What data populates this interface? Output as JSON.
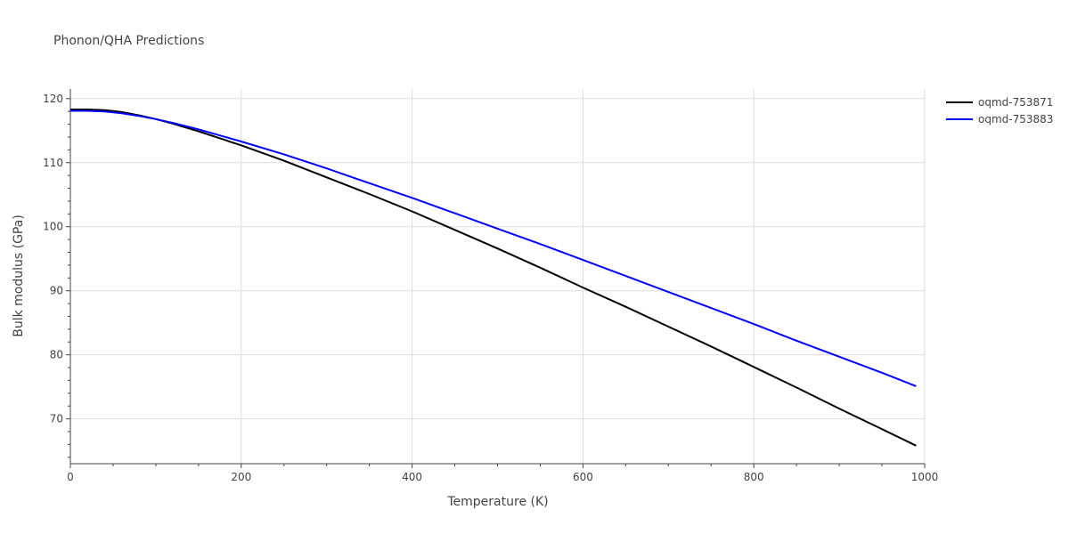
{
  "chart_data": {
    "type": "line",
    "title": "Phonon/QHA Predictions",
    "xlabel": "Temperature (K)",
    "ylabel": "Bulk modulus (GPa)",
    "xlim": [
      0,
      1000
    ],
    "ylim": [
      63,
      121.5
    ],
    "x_ticks": [
      0,
      200,
      400,
      600,
      800,
      1000
    ],
    "x_tick_labels": [
      "0",
      "200",
      "400",
      "600",
      "800",
      "1000"
    ],
    "y_ticks": [
      70,
      80,
      90,
      100,
      110,
      120
    ],
    "y_tick_labels": [
      "70",
      "80",
      "90",
      "100",
      "110",
      "120"
    ],
    "grid": true,
    "legend_position": "top-right",
    "series": [
      {
        "name": "oqmd-753871",
        "color": "#000000",
        "x": [
          0,
          20,
          40,
          60,
          80,
          100,
          120,
          150,
          200,
          250,
          300,
          350,
          400,
          450,
          500,
          550,
          600,
          650,
          700,
          750,
          800,
          850,
          900,
          950,
          990
        ],
        "y": [
          118.3,
          118.3,
          118.2,
          117.9,
          117.4,
          116.8,
          116.1,
          114.9,
          112.7,
          110.3,
          107.7,
          105.1,
          102.4,
          99.5,
          96.6,
          93.6,
          90.5,
          87.5,
          84.4,
          81.3,
          78.1,
          74.9,
          71.6,
          68.4,
          65.8
        ]
      },
      {
        "name": "oqmd-753883",
        "color": "#0000ff",
        "x": [
          0,
          20,
          40,
          60,
          80,
          100,
          120,
          150,
          200,
          250,
          300,
          350,
          400,
          450,
          500,
          550,
          600,
          650,
          700,
          750,
          800,
          850,
          900,
          950,
          990
        ],
        "y": [
          118.1,
          118.1,
          118.0,
          117.7,
          117.3,
          116.8,
          116.2,
          115.2,
          113.3,
          111.3,
          109.1,
          106.8,
          104.5,
          102.1,
          99.7,
          97.3,
          94.8,
          92.3,
          89.8,
          87.3,
          84.8,
          82.2,
          79.7,
          77.2,
          75.1
        ]
      }
    ]
  }
}
